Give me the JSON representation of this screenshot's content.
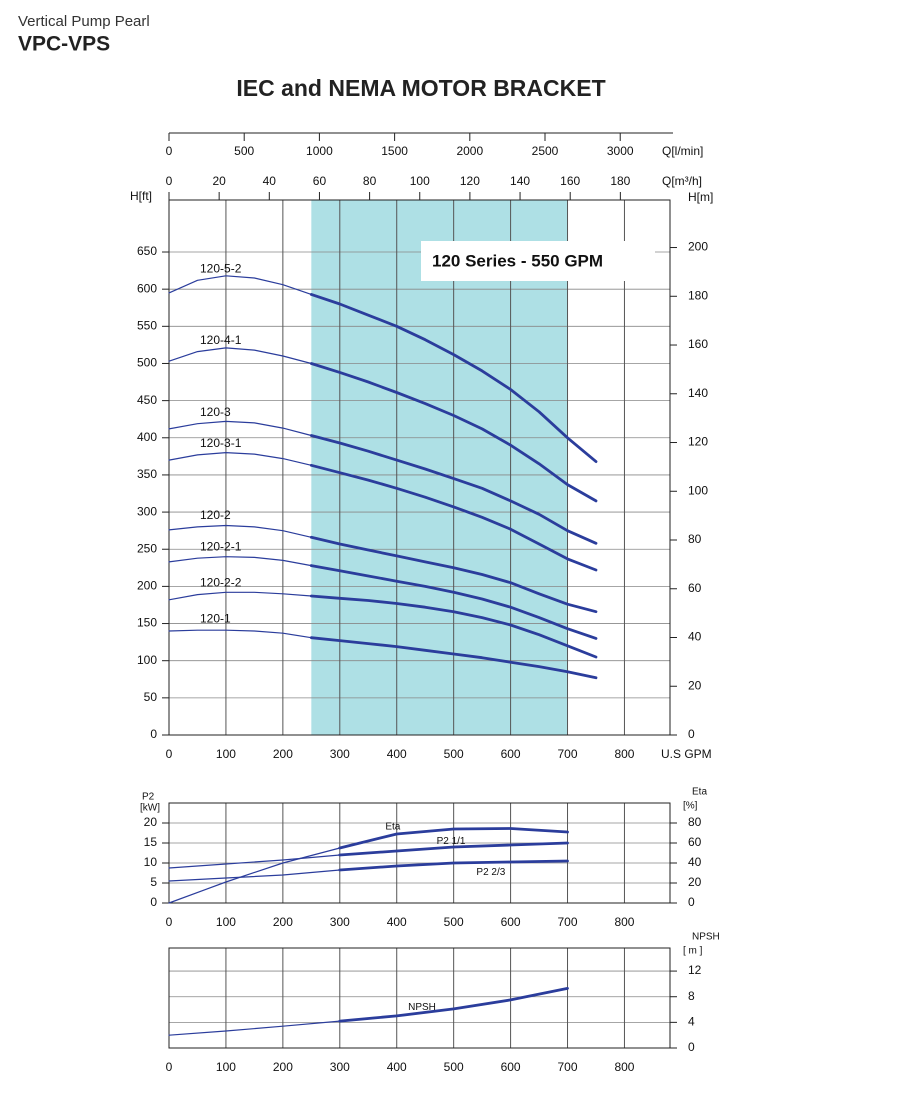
{
  "header": {
    "brand": "Vertical Pump Pearl",
    "model": "VPC-VPS"
  },
  "chart_data": [
    {
      "type": "line",
      "title": "IEC and NEMA MOTOR BRACKET",
      "x": [
        0,
        50,
        100,
        150,
        200,
        250,
        300,
        350,
        400,
        450,
        500,
        550,
        600,
        650,
        700,
        750
      ],
      "xlim": [
        0,
        880
      ],
      "xticks": [
        0,
        100,
        200,
        300,
        400,
        500,
        600,
        700,
        800
      ],
      "xlabel": "U.S GPM",
      "x2label": "Q[l/min]",
      "x2lim": [
        0,
        3331
      ],
      "x2ticks": [
        0,
        500,
        1000,
        1500,
        2000,
        2500,
        3000
      ],
      "x3label": "Q[m³/h]",
      "x3lim": [
        0,
        199.8
      ],
      "x3ticks": [
        0,
        20,
        40,
        60,
        80,
        100,
        120,
        140,
        160,
        180
      ],
      "ylabel": "H[ft]",
      "ylim": [
        0,
        720
      ],
      "yticks": [
        0,
        50,
        100,
        150,
        200,
        250,
        300,
        350,
        400,
        450,
        500,
        550,
        600,
        650
      ],
      "y2label": "H[m]",
      "y2lim": [
        0,
        219.5
      ],
      "y2ticks": [
        0,
        20,
        40,
        60,
        80,
        100,
        120,
        140,
        160,
        180,
        200
      ],
      "grid": true,
      "highlight": {
        "x": [
          250,
          700
        ],
        "color": "#aee0e5"
      },
      "annotation": "120 Series - 550 GPM",
      "series": [
        {
          "name": "120-5-2",
          "color": "#2b3d9c",
          "values": [
            595,
            612,
            618,
            615,
            606,
            593,
            580,
            565,
            550,
            532,
            512,
            490,
            465,
            435,
            400,
            368
          ]
        },
        {
          "name": "120-4-1",
          "color": "#2b3d9c",
          "values": [
            503,
            516,
            521,
            518,
            510,
            500,
            488,
            475,
            461,
            446,
            430,
            412,
            390,
            365,
            337,
            315
          ]
        },
        {
          "name": "120-3",
          "color": "#2b3d9c",
          "values": [
            412,
            419,
            422,
            420,
            413,
            403,
            393,
            382,
            370,
            358,
            345,
            332,
            315,
            297,
            275,
            258
          ]
        },
        {
          "name": "120-3-1",
          "color": "#2b3d9c",
          "values": [
            370,
            377,
            380,
            378,
            372,
            363,
            353,
            343,
            332,
            320,
            307,
            293,
            277,
            257,
            237,
            222
          ]
        },
        {
          "name": "120-2",
          "color": "#2b3d9c",
          "values": [
            276,
            280,
            282,
            280,
            275,
            266,
            257,
            249,
            241,
            233,
            225,
            216,
            205,
            190,
            176,
            166
          ]
        },
        {
          "name": "120-2-1",
          "color": "#2b3d9c",
          "values": [
            233,
            238,
            240,
            239,
            235,
            228,
            221,
            214,
            207,
            200,
            192,
            183,
            172,
            158,
            143,
            130
          ]
        },
        {
          "name": "120-2-2",
          "color": "#2b3d9c",
          "values": [
            182,
            189,
            192,
            192,
            190,
            187,
            184,
            181,
            177,
            172,
            166,
            158,
            148,
            135,
            120,
            105
          ]
        },
        {
          "name": "120-1",
          "color": "#2b3d9c",
          "values": [
            140,
            141,
            141,
            140,
            137,
            131,
            127,
            123,
            119,
            114,
            109,
            104,
            98,
            92,
            85,
            77
          ]
        }
      ]
    },
    {
      "type": "line",
      "x": [
        0,
        100,
        200,
        300,
        400,
        500,
        600,
        700
      ],
      "xlim": [
        0,
        880
      ],
      "xticks": [
        0,
        100,
        200,
        300,
        400,
        500,
        600,
        700,
        800
      ],
      "ylabel": "P2",
      "yunit": "[kW]",
      "ylim": [
        0,
        25
      ],
      "yticks": [
        0,
        5,
        10,
        15,
        20
      ],
      "y2label": "Eta",
      "y2unit": "[%]",
      "y2lim": [
        0,
        100
      ],
      "y2ticks": [
        0,
        20,
        40,
        60,
        80
      ],
      "grid": true,
      "highlight": {
        "x": [
          250,
          700
        ]
      },
      "series": [
        {
          "name": "Eta",
          "color": "#2b3d9c",
          "axis": "y2",
          "values": [
            0,
            21,
            40,
            55,
            69,
            74,
            74.5,
            71
          ]
        },
        {
          "name": "P2 1/1",
          "color": "#2b3d9c",
          "values": [
            8.75,
            9.75,
            10.75,
            12,
            13,
            14,
            14.5,
            15
          ]
        },
        {
          "name": "P2 2/3",
          "color": "#2b3d9c",
          "values": [
            5.5,
            6.25,
            7,
            8.25,
            9.25,
            10,
            10.25,
            10.5
          ]
        }
      ]
    },
    {
      "type": "line",
      "x": [
        0,
        100,
        200,
        300,
        400,
        500,
        600,
        700
      ],
      "xlim": [
        0,
        880
      ],
      "xticks": [
        0,
        100,
        200,
        300,
        400,
        500,
        600,
        700,
        800
      ],
      "y2label": "NPSH",
      "y2unit": "[ m ]",
      "y2lim": [
        0,
        15.6
      ],
      "y2ticks": [
        0,
        4,
        8,
        12
      ],
      "grid": true,
      "highlight": {
        "x": [
          250,
          700
        ]
      },
      "series": [
        {
          "name": "NPSH",
          "color": "#2b3d9c",
          "axis": "y2",
          "values": [
            2.0,
            2.65,
            3.4,
            4.2,
            5.0,
            6.1,
            7.5,
            9.3
          ]
        }
      ]
    }
  ]
}
